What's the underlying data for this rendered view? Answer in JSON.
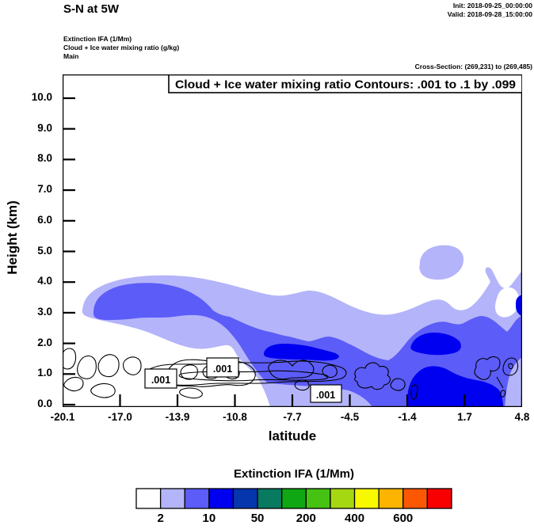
{
  "header": {
    "title": "S-N at 5W",
    "init": "Init: 2018-09-25_00:00:00",
    "valid": "Valid: 2018-09-28_15:00:00",
    "fields": [
      "Extinction IFA  (1/Mm)",
      "Cloud + Ice water mixing ratio  (g/kg)",
      "Main"
    ],
    "cross_section": "Cross-Section: (269,231) to (269,485)"
  },
  "chart_data": {
    "type": "heatmap",
    "title": "Cloud + Ice water mixing ratio Contours: .001 to .1 by .099",
    "xlabel": "latitude",
    "ylabel": "Height (km)",
    "x_tick_labels": [
      "-20.1",
      "-17.0",
      "-13.9",
      "-10.8",
      "-7.7",
      "-4.5",
      "-1.4",
      "1.7",
      "4.8"
    ],
    "y_tick_labels": [
      "10.0",
      "9.0",
      "8.0",
      "7.0",
      "6.0",
      "5.0",
      "4.0",
      "3.0",
      "2.0",
      "1.0",
      "0.0"
    ],
    "xlim": [
      -20.1,
      4.8
    ],
    "ylim": [
      0.0,
      10.8
    ],
    "grid": false,
    "filled_variable": "Extinction IFA (1/Mm)",
    "contour_variable": "Cloud + Ice water mixing ratio (g/kg)",
    "contour_levels": ".001 to .1 by .099",
    "contour_line_label": ".001",
    "fill_colors": {
      "background": "#ffffff",
      "light": "#b4b4fa",
      "medium": "#5c5cf8",
      "dark": "#0000f0",
      "contour_line": "#000000"
    },
    "regions_summary": [
      {
        "value_range": "2-10 1/Mm",
        "color": "#b4b4fa",
        "description": "broad extinction layer below ~4.5 km from lat -19 to 4.8, plus detached patch near lat 2 at 4-5 km"
      },
      {
        "value_range": "10-50 1/Mm",
        "color": "#5c5cf8",
        "description": "core band near 3-4 km from lat -18.5 to -12 descending toward the surface north of lat -9"
      },
      {
        "value_range": "50-200 1/Mm",
        "color": "#0000f0",
        "description": "maxima near lat -8.5/-6.5 at ~1.5 km, lat -1.5/0.5 at ~1.7 km, and below 1 km around lat -1 to 1.5"
      }
    ],
    "colorbar": {
      "title": "Extinction IFA  (1/Mm)",
      "colors": [
        "#ffffff",
        "#b4b4fa",
        "#5c5cf8",
        "#0000f0",
        "#0636ae",
        "#077a60",
        "#0fa713",
        "#46c213",
        "#a6d812",
        "#f8f800",
        "#fcb400",
        "#fc5703",
        "#f90000"
      ],
      "tick_labels": [
        "2",
        "10",
        "50",
        "200",
        "400",
        "600"
      ],
      "tick_boundary_indices": [
        1,
        3,
        5,
        7,
        9,
        11
      ]
    }
  }
}
